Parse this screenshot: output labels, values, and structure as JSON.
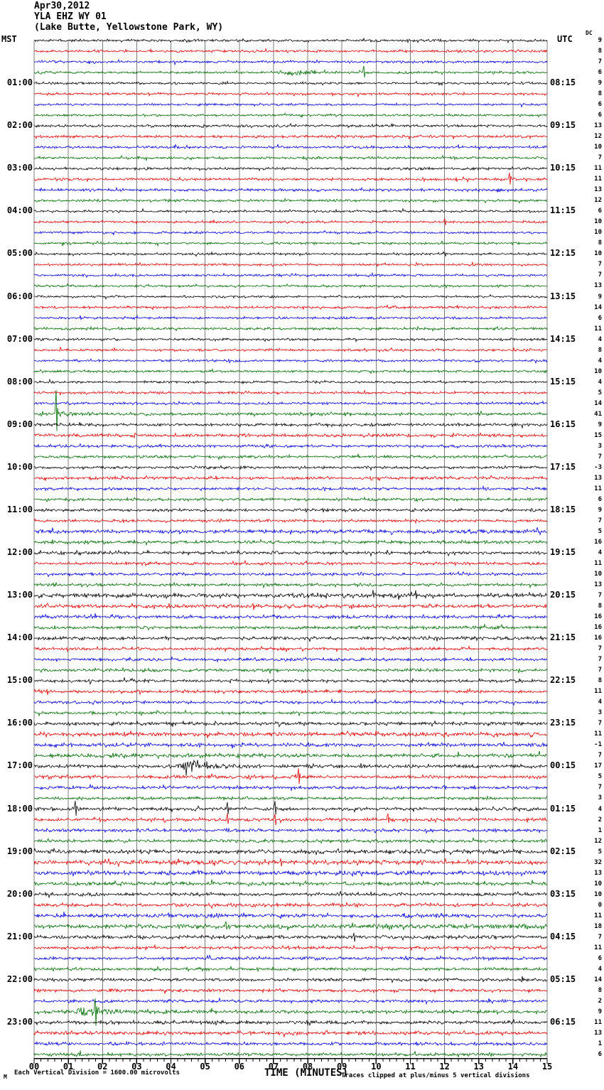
{
  "header": {
    "date": "Apr30,2012",
    "station": "YLA EHZ WY 01",
    "location": "(Lake Butte, Yellowstone Park, WY)"
  },
  "axes": {
    "left_tz": "MST",
    "right_tz": "UTC",
    "dc_header": "DC",
    "x_title": "TIME (MINUTES)"
  },
  "footer": {
    "corner_glyph": "M",
    "scale_note": "Each Vertical Division = 1600.00 microvolts",
    "clip_note": "Traces clipped at plus/minus 5 vertical divisions"
  },
  "colors": {
    "trace_cycle": [
      "#000000",
      "#e00000",
      "#0000dd",
      "#006b00"
    ],
    "grid": "#7d7d7d",
    "axis": "#000000"
  },
  "chart_data": {
    "type": "helicorder-seismogram",
    "title": "YLA EHZ WY 01 (Lake Butte, Yellowstone Park, WY) Apr30,2012",
    "xlabel": "TIME (MINUTES)",
    "x_range_minutes": [
      0,
      15
    ],
    "minutes_per_line": 15,
    "lines_per_hour": 4,
    "rows": 96,
    "grid": true,
    "x_ticks": [
      "00",
      "01",
      "02",
      "03",
      "04",
      "05",
      "06",
      "07",
      "08",
      "09",
      "10",
      "11",
      "12",
      "13",
      "14",
      "15"
    ],
    "mst_labels": [
      "01:00",
      "02:00",
      "03:00",
      "04:00",
      "05:00",
      "06:00",
      "07:00",
      "08:00",
      "09:00",
      "10:00",
      "11:00",
      "12:00",
      "13:00",
      "14:00",
      "15:00",
      "16:00",
      "17:00",
      "18:00",
      "19:00",
      "20:00",
      "21:00",
      "22:00",
      "23:00"
    ],
    "utc_labels": [
      "08:15",
      "09:15",
      "10:15",
      "11:15",
      "12:15",
      "13:15",
      "14:15",
      "15:15",
      "16:15",
      "17:15",
      "18:15",
      "19:15",
      "20:15",
      "21:15",
      "22:15",
      "23:15",
      "00:15",
      "01:15",
      "02:15",
      "03:15",
      "04:15",
      "05:15",
      "06:15"
    ],
    "dc_offsets": [
      9,
      8,
      7,
      6,
      9,
      8,
      6,
      6,
      13,
      12,
      10,
      7,
      11,
      11,
      13,
      12,
      6,
      10,
      10,
      8,
      10,
      7,
      7,
      13,
      9,
      14,
      6,
      11,
      4,
      8,
      4,
      10,
      4,
      5,
      14,
      41,
      9,
      15,
      3,
      7,
      -3,
      13,
      11,
      6,
      9,
      7,
      5,
      16,
      4,
      11,
      10,
      13,
      7,
      8,
      16,
      16,
      16,
      7,
      7,
      7,
      8,
      11,
      4,
      3,
      7,
      11,
      -1,
      7,
      17,
      5,
      7,
      3,
      4,
      2,
      1,
      12,
      5,
      32,
      13,
      10,
      10,
      0,
      11,
      18,
      7,
      11,
      6,
      4,
      14,
      8,
      2,
      9,
      11,
      13,
      1,
      6
    ],
    "noise_amps": [
      1.3,
      1.3,
      1.2,
      1.3,
      1.2,
      1.2,
      1.1,
      1.2,
      1.4,
      1.4,
      1.3,
      1.3,
      1.3,
      1.3,
      1.4,
      1.3,
      1.2,
      1.2,
      1.2,
      1.2,
      1.2,
      1.1,
      1.2,
      1.2,
      1.2,
      1.2,
      1.2,
      1.3,
      1.2,
      1.2,
      1.2,
      1.2,
      1.2,
      1.3,
      1.3,
      1.5,
      1.5,
      1.7,
      1.4,
      1.4,
      1.4,
      1.5,
      1.4,
      1.4,
      1.5,
      1.4,
      2.0,
      1.6,
      1.5,
      1.5,
      1.5,
      1.5,
      2.2,
      1.9,
      1.7,
      1.6,
      1.8,
      1.5,
      1.5,
      1.5,
      1.5,
      1.5,
      1.4,
      1.4,
      1.7,
      2.0,
      1.9,
      1.9,
      1.8,
      1.7,
      1.6,
      1.5,
      1.7,
      1.7,
      1.6,
      1.6,
      2.0,
      2.3,
      2.2,
      1.8,
      1.7,
      1.8,
      1.9,
      2.3,
      1.9,
      1.6,
      1.6,
      1.5,
      1.6,
      1.5,
      1.5,
      1.8,
      1.8,
      1.8,
      1.6,
      1.6
    ],
    "events": [
      {
        "row": 3,
        "kind": "burst",
        "m0": 7.0,
        "m1": 9.3,
        "amp": 5
      },
      {
        "row": 3,
        "kind": "spike",
        "m": 9.65,
        "amp": 9
      },
      {
        "row": 13,
        "kind": "spike",
        "m": 13.9,
        "amp": 10
      },
      {
        "row": 17,
        "kind": "spike",
        "m": 12.0,
        "amp": 5
      },
      {
        "row": 35,
        "kind": "burst",
        "m0": 0.45,
        "m1": 1.9,
        "amp": 5
      },
      {
        "row": 35,
        "kind": "spike",
        "m": 0.65,
        "amp": 34
      },
      {
        "row": 47,
        "kind": "burst",
        "m0": 1.4,
        "m1": 2.3,
        "amp": 3.5
      },
      {
        "row": 52,
        "kind": "burst",
        "m0": 6.3,
        "m1": 13.8,
        "amp": 2.2
      },
      {
        "row": 52,
        "kind": "spike",
        "m": 9.9,
        "amp": 6
      },
      {
        "row": 52,
        "kind": "spike",
        "m": 11.15,
        "amp": 6
      },
      {
        "row": 53,
        "kind": "spike",
        "m": 6.4,
        "amp": 4
      },
      {
        "row": 67,
        "kind": "burst",
        "m0": 1.8,
        "m1": 5.5,
        "amp": 2.5
      },
      {
        "row": 68,
        "kind": "burst",
        "m0": 3.75,
        "m1": 7.2,
        "amp": 6
      },
      {
        "row": 68,
        "kind": "burst",
        "m0": 4.2,
        "m1": 5.3,
        "amp": 12
      },
      {
        "row": 69,
        "kind": "spike",
        "m": 7.72,
        "amp": 12
      },
      {
        "row": 70,
        "kind": "spike",
        "m": 9.0,
        "amp": 4
      },
      {
        "row": 70,
        "kind": "spike",
        "m": 12.0,
        "amp": 5
      },
      {
        "row": 72,
        "kind": "spike",
        "m": 1.2,
        "amp": 13
      },
      {
        "row": 72,
        "kind": "spike",
        "m": 5.65,
        "amp": 10
      },
      {
        "row": 72,
        "kind": "spike",
        "m": 7.05,
        "amp": 10
      },
      {
        "row": 73,
        "kind": "spike",
        "m": 5.65,
        "amp": 8
      },
      {
        "row": 73,
        "kind": "spike",
        "m": 7.05,
        "amp": 8
      },
      {
        "row": 73,
        "kind": "spike",
        "m": 10.35,
        "amp": 8
      },
      {
        "row": 76,
        "kind": "burst",
        "m0": 10.5,
        "m1": 15.0,
        "amp": 3
      },
      {
        "row": 77,
        "kind": "spike",
        "m": 7.2,
        "amp": 8
      },
      {
        "row": 83,
        "kind": "spike",
        "m": 5.6,
        "amp": 5
      },
      {
        "row": 84,
        "kind": "spike",
        "m": 9.35,
        "amp": 6
      },
      {
        "row": 91,
        "kind": "burst",
        "m0": 1.1,
        "m1": 2.8,
        "amp": 9
      },
      {
        "row": 91,
        "kind": "spike",
        "m": 1.78,
        "amp": 18
      },
      {
        "row": 91,
        "kind": "burst",
        "m0": 2.8,
        "m1": 6.2,
        "amp": 3
      }
    ],
    "notes": "96 traces of 15 minutes each, 00:00-23:45 MST; colors cycle black/red/blue/green; right column DC offset per trace"
  }
}
